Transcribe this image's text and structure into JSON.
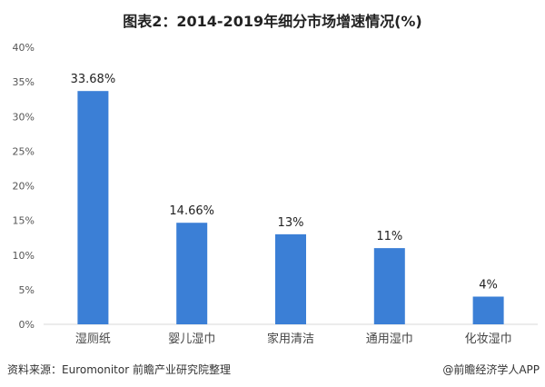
{
  "chart_data": {
    "type": "bar",
    "title": "图表2：2014-2019年细分市场增速情况(%)",
    "categories": [
      "湿厕纸",
      "婴儿湿巾",
      "家用清洁",
      "通用湿巾",
      "化妆湿巾"
    ],
    "values": [
      33.68,
      14.66,
      13,
      11,
      4
    ],
    "data_labels": [
      "33.68%",
      "14.66%",
      "13%",
      "11%",
      "4%"
    ],
    "ylim": [
      0,
      40
    ],
    "yticks": [
      "0%",
      "5%",
      "10%",
      "15%",
      "20%",
      "25%",
      "30%",
      "35%",
      "40%"
    ],
    "xlabel": "",
    "ylabel": "",
    "grid": false,
    "bar_color": "#3b7fd6"
  },
  "footer": {
    "source": "资料来源：Euromonitor 前瞻产业研究院整理",
    "credit": "@前瞻经济学人APP"
  }
}
